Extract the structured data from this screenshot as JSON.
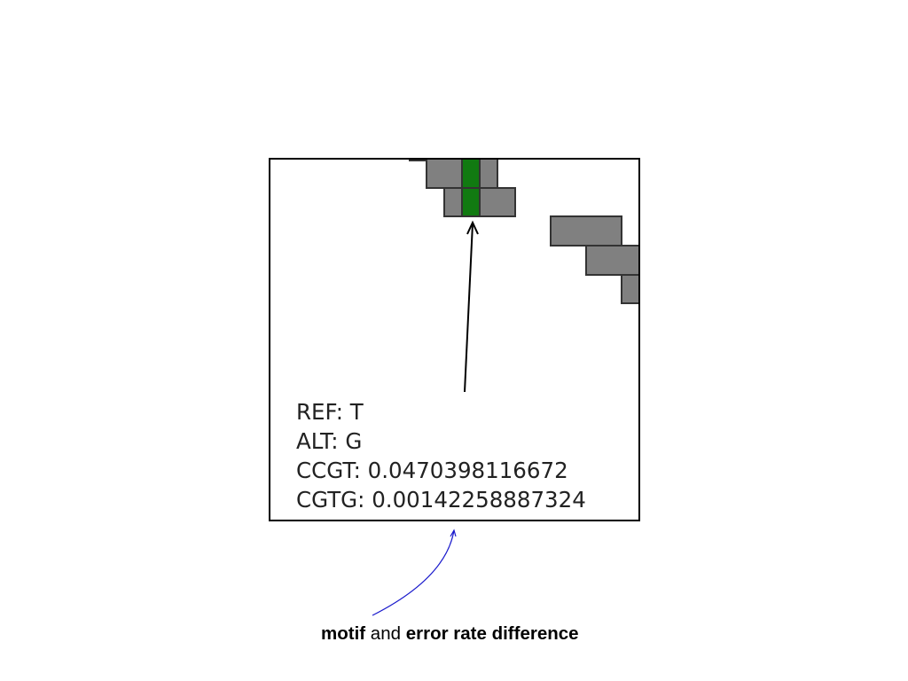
{
  "figure": {
    "read_color": "#808080",
    "mismatch_color": "#117a11",
    "info": {
      "ref": "REF: T",
      "alt": "ALT: G",
      "motif_1": "CCGT: 0.0470398116672",
      "motif_2": "CGTG: 0.00142258887324"
    }
  },
  "caption": {
    "part_1": "motif",
    "part_2": " and ",
    "part_3": "error rate difference"
  },
  "colors": {
    "annotation_arrow": "#1a1acc",
    "pointer_arrow": "#000000"
  }
}
